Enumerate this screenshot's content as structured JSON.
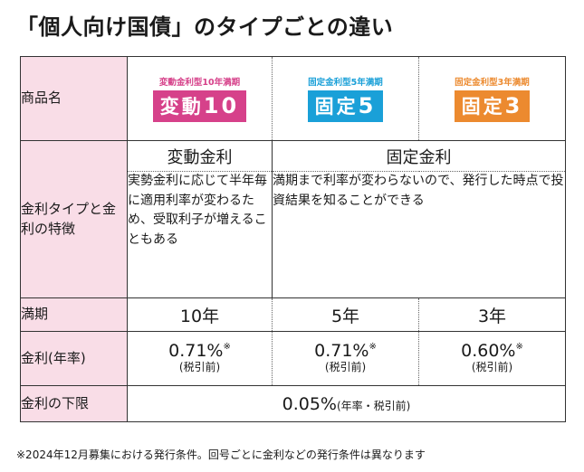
{
  "title": "「個人向け国債」のタイプごとの違い",
  "labels": {
    "product": "商品名",
    "type": "金利タイプと金利の特徴",
    "maturity": "満期",
    "rate": "金利(年率)",
    "floor": "金利の下限"
  },
  "products": [
    {
      "subtitle": "変動金利型10年満期",
      "name": "変動",
      "number": "10",
      "color": "#d6418a"
    },
    {
      "subtitle": "固定金利型5年満期",
      "name": "固定",
      "number": "5",
      "color": "#1aa0d8"
    },
    {
      "subtitle": "固定金利型3年満期",
      "name": "固定",
      "number": "3",
      "color": "#ec8a2f"
    }
  ],
  "rate_types": {
    "floating": "変動金利",
    "fixed": "固定金利",
    "floating_desc": "実勢金利に応じて半年毎に適用利率が変わるため、受取利子が増えることもある",
    "fixed_desc": "満期まで利率が変わらないので、発行した時点で投資結果を知ることができる"
  },
  "maturities": [
    "10年",
    "5年",
    "3年"
  ],
  "rates": [
    "0.71%",
    "0.71%",
    "0.60%"
  ],
  "rate_mark": "※",
  "rate_note": "(税引前)",
  "floor": {
    "value": "0.05%",
    "note": "(年率・税引前)"
  },
  "footnote": "※2024年12月募集における発行条件。回号ごとに金利などの発行条件は異なります"
}
